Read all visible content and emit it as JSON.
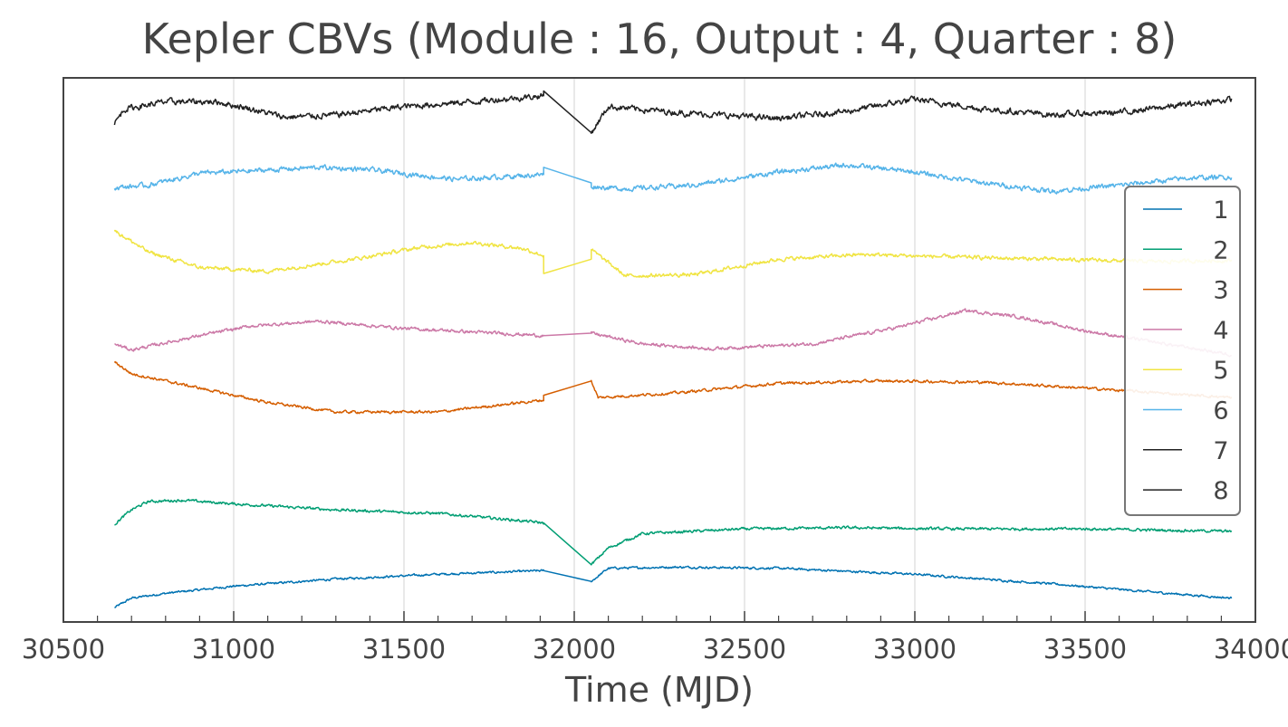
{
  "chart_data": {
    "type": "line",
    "title": "Kepler CBVs (Module : 16, Output : 4, Quarter : 8)",
    "xlabel": "Time (MJD)",
    "ylabel": "",
    "xlim": [
      30500,
      34000
    ],
    "xticks": [
      30500,
      31000,
      31500,
      32000,
      32500,
      33000,
      33500,
      34000
    ],
    "xtick_labels": [
      "30500",
      "31000",
      "31500",
      "32000",
      "32500",
      "33000",
      "33500",
      "34000"
    ],
    "grid": "vertical",
    "legend": "center-right",
    "gap": [
      31910,
      32050
    ],
    "series": [
      {
        "name": "1",
        "color": "#0072B2",
        "noise": 0.8,
        "x": [
          30650,
          30700,
          30800,
          31000,
          31300,
          31600,
          31910,
          32050,
          32100,
          32300,
          32600,
          33000,
          33400,
          33700,
          33930
        ],
        "y": [
          -5.7,
          -5.3,
          -5.1,
          -4.8,
          -4.5,
          -4.3,
          -4.15,
          -4.6,
          -4.05,
          -4.0,
          -4.05,
          -4.3,
          -4.7,
          -5.05,
          -5.3
        ]
      },
      {
        "name": "2",
        "color": "#009E73",
        "noise": 1.0,
        "x": [
          30650,
          30700,
          30750,
          30850,
          31000,
          31300,
          31600,
          31800,
          31910,
          32050,
          32100,
          32200,
          32500,
          32800,
          33100,
          33500,
          33930
        ],
        "y": [
          -2.2,
          -1.6,
          -1.25,
          -1.2,
          -1.35,
          -1.6,
          -1.75,
          -2.0,
          -2.15,
          -3.9,
          -3.2,
          -2.6,
          -2.4,
          -2.35,
          -2.4,
          -2.4,
          -2.5
        ]
      },
      {
        "name": "3",
        "color": "#D55E00",
        "noise": 1.0,
        "x": [
          30650,
          30700,
          30900,
          31100,
          31300,
          31600,
          31910,
          31910,
          32050,
          32070,
          32300,
          32600,
          32900,
          33200,
          33500,
          33930
        ],
        "y": [
          4.6,
          4.1,
          3.5,
          2.9,
          2.5,
          2.5,
          3.0,
          3.2,
          3.8,
          3.1,
          3.3,
          3.7,
          3.8,
          3.75,
          3.5,
          3.1
        ]
      },
      {
        "name": "4",
        "color": "#CC79A7",
        "noise": 1.2,
        "x": [
          30650,
          30700,
          30900,
          31050,
          31250,
          31500,
          31910,
          32050,
          32200,
          32400,
          32700,
          32950,
          33150,
          33300,
          33500,
          33930
        ],
        "y": [
          5.35,
          5.1,
          5.7,
          6.1,
          6.3,
          6.0,
          5.7,
          5.8,
          5.35,
          5.15,
          5.35,
          6.05,
          6.75,
          6.5,
          5.9,
          4.9
        ]
      },
      {
        "name": "5",
        "color": "#F0E442",
        "noise": 1.4,
        "x": [
          30650,
          30750,
          30900,
          31100,
          31350,
          31550,
          31700,
          31850,
          31910,
          31910,
          32050,
          32050,
          32150,
          32350,
          32600,
          32850,
          33100,
          33400,
          33700,
          33930
        ],
        "y": [
          10.1,
          9.2,
          8.55,
          8.4,
          8.9,
          9.4,
          9.6,
          9.35,
          9.05,
          8.3,
          8.9,
          9.3,
          8.2,
          8.25,
          8.9,
          9.1,
          9.0,
          8.9,
          8.8,
          8.85
        ]
      },
      {
        "name": "6",
        "color": "#56B4E9",
        "noise": 1.8,
        "x": [
          30650,
          30750,
          30900,
          31050,
          31250,
          31400,
          31650,
          31910,
          31910,
          32050,
          32050,
          32150,
          32350,
          32600,
          32800,
          33000,
          33200,
          33400,
          33600,
          33800,
          33930
        ],
        "y": [
          11.9,
          12.0,
          12.5,
          12.6,
          12.75,
          12.65,
          12.25,
          12.45,
          12.75,
          12.1,
          11.95,
          11.85,
          12.0,
          12.55,
          12.85,
          12.55,
          12.1,
          11.75,
          12.0,
          12.3,
          12.35
        ]
      },
      {
        "name": "7",
        "color": "#222222",
        "noise": 2.2,
        "x": [
          30650,
          30680,
          30800,
          30950,
          31050,
          31150,
          31300,
          31500,
          31700,
          31910,
          31910,
          32050,
          32100,
          32300,
          32600,
          32800,
          33000,
          33200,
          33400,
          33600,
          33930
        ],
        "y": [
          14.6,
          15.2,
          15.5,
          15.5,
          15.2,
          14.85,
          14.95,
          15.3,
          15.5,
          15.75,
          15.95,
          14.2,
          15.3,
          15.05,
          14.8,
          15.1,
          15.6,
          15.2,
          14.95,
          15.05,
          15.6
        ]
      },
      {
        "name": "8",
        "color": "#222222",
        "noise": 0,
        "x": [],
        "y": []
      }
    ]
  }
}
